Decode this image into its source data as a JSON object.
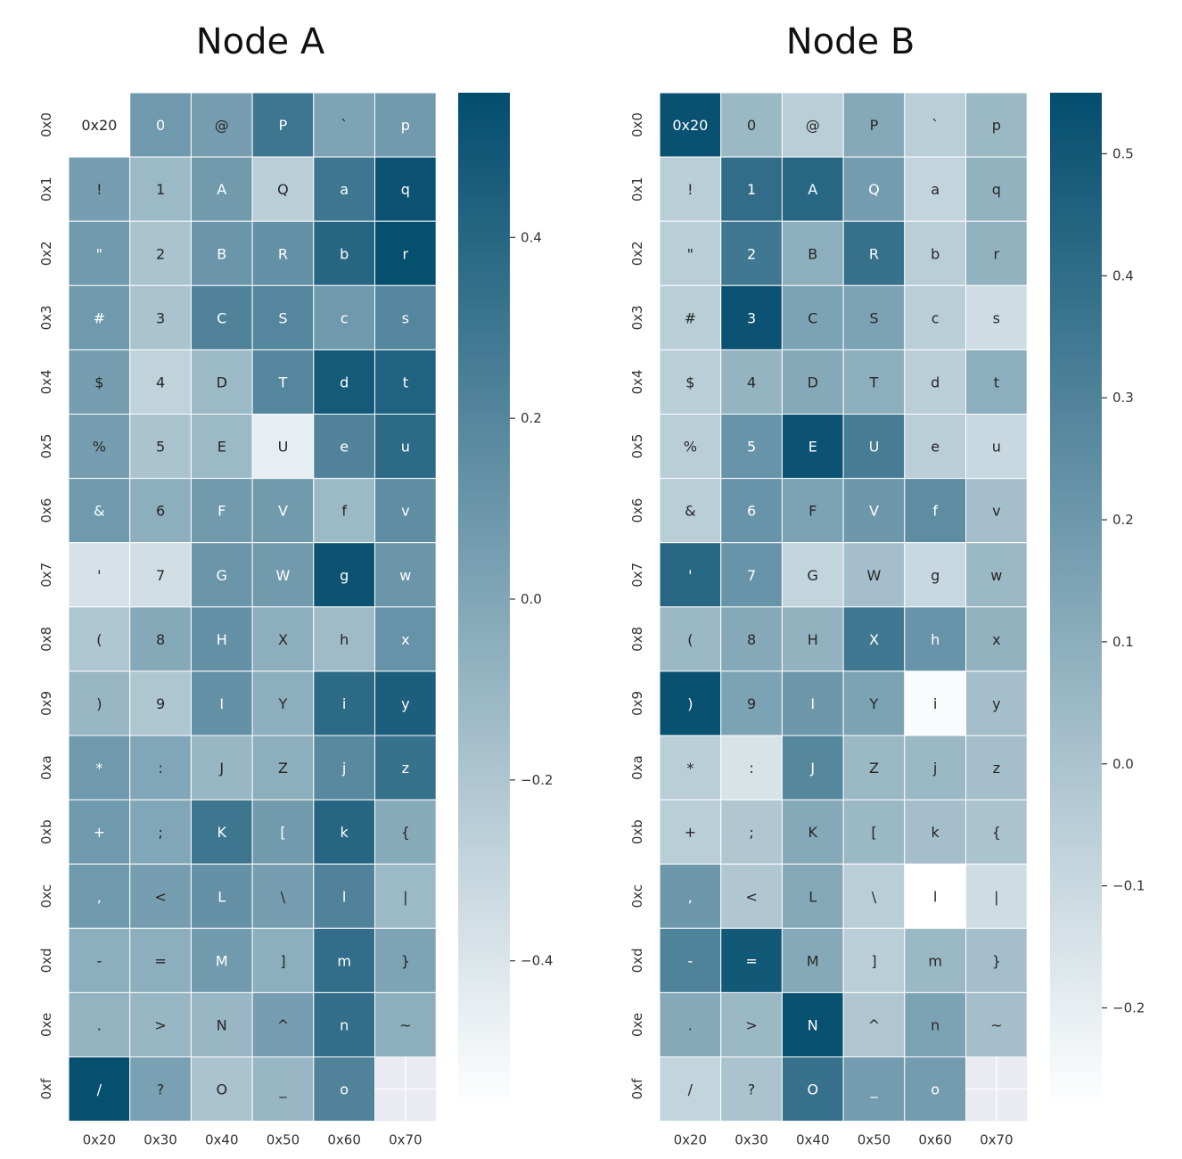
{
  "chart_data": [
    {
      "type": "heatmap",
      "title": "Node A",
      "x_categories": [
        "0x20",
        "0x30",
        "0x40",
        "0x50",
        "0x60",
        "0x70"
      ],
      "y_categories": [
        "0x0",
        "0x1",
        "0x2",
        "0x3",
        "0x4",
        "0x5",
        "0x6",
        "0x7",
        "0x8",
        "0x9",
        "0xa",
        "0xb",
        "0xc",
        "0xd",
        "0xe",
        "0xf"
      ],
      "cell_labels": [
        [
          "0x20",
          "0",
          "@",
          "P",
          "`",
          "p"
        ],
        [
          "!",
          "1",
          "A",
          "Q",
          "a",
          "q"
        ],
        [
          "\"",
          "2",
          "B",
          "R",
          "b",
          "r"
        ],
        [
          "#",
          "3",
          "C",
          "S",
          "c",
          "s"
        ],
        [
          "$",
          "4",
          "D",
          "T",
          "d",
          "t"
        ],
        [
          "%",
          "5",
          "E",
          "U",
          "e",
          "u"
        ],
        [
          "&",
          "6",
          "F",
          "V",
          "f",
          "v"
        ],
        [
          "'",
          "7",
          "G",
          "W",
          "g",
          "w"
        ],
        [
          "(",
          "8",
          "H",
          "X",
          "h",
          "x"
        ],
        [
          ")",
          "9",
          "I",
          "Y",
          "i",
          "y"
        ],
        [
          "*",
          ":",
          "J",
          "Z",
          "j",
          "z"
        ],
        [
          "+",
          ";",
          "K",
          "[",
          "k",
          "{"
        ],
        [
          ",",
          "<",
          "L",
          "\\",
          "l",
          "|"
        ],
        [
          "-",
          "=",
          "M",
          "]",
          "m",
          "}"
        ],
        [
          ".",
          ">",
          "N",
          "^",
          "n",
          "~"
        ],
        [
          "/",
          "?",
          "O",
          "_",
          "o",
          ""
        ]
      ],
      "values": [
        [
          -0.56,
          0.08,
          0.05,
          0.3,
          0.02,
          0.07
        ],
        [
          0.05,
          -0.12,
          0.07,
          -0.25,
          0.3,
          0.52
        ],
        [
          0.08,
          -0.18,
          0.1,
          0.13,
          0.4,
          0.55
        ],
        [
          0.08,
          -0.18,
          0.22,
          0.2,
          0.08,
          0.2
        ],
        [
          0.05,
          -0.28,
          -0.12,
          0.2,
          0.48,
          0.43
        ],
        [
          0.05,
          -0.18,
          -0.12,
          -0.45,
          0.22,
          0.38
        ],
        [
          0.08,
          -0.05,
          0.07,
          0.07,
          -0.12,
          0.15
        ],
        [
          -0.38,
          -0.35,
          0.1,
          0.07,
          0.52,
          0.1
        ],
        [
          -0.2,
          -0.02,
          0.13,
          -0.05,
          -0.13,
          0.12
        ],
        [
          -0.1,
          -0.2,
          0.13,
          -0.05,
          0.38,
          0.45
        ],
        [
          0.08,
          0.0,
          -0.1,
          -0.05,
          0.18,
          0.33
        ],
        [
          0.08,
          0.0,
          0.3,
          0.07,
          0.4,
          -0.03
        ],
        [
          0.08,
          0.05,
          0.13,
          0.05,
          0.22,
          -0.12
        ],
        [
          -0.05,
          -0.05,
          0.07,
          -0.05,
          0.35,
          0.02
        ],
        [
          -0.08,
          -0.1,
          -0.1,
          0.05,
          0.35,
          -0.05
        ],
        [
          0.55,
          0.03,
          -0.18,
          -0.1,
          0.22,
          null
        ]
      ],
      "colorbar": {
        "min": -0.56,
        "max": 0.56,
        "ticks": [
          0.4,
          0.2,
          0.0,
          -0.2,
          -0.4
        ],
        "tick_labels": [
          "0.4",
          "0.2",
          "0.0",
          "−0.2",
          "−0.4"
        ]
      }
    },
    {
      "type": "heatmap",
      "title": "Node B",
      "x_categories": [
        "0x20",
        "0x30",
        "0x40",
        "0x50",
        "0x60",
        "0x70"
      ],
      "y_categories": [
        "0x0",
        "0x1",
        "0x2",
        "0x3",
        "0x4",
        "0x5",
        "0x6",
        "0x7",
        "0x8",
        "0x9",
        "0xa",
        "0xb",
        "0xc",
        "0xd",
        "0xe",
        "0xf"
      ],
      "cell_labels": [
        [
          "0x20",
          "0",
          "@",
          "P",
          "`",
          "p"
        ],
        [
          "!",
          "1",
          "A",
          "Q",
          "a",
          "q"
        ],
        [
          "\"",
          "2",
          "B",
          "R",
          "b",
          "r"
        ],
        [
          "#",
          "3",
          "C",
          "S",
          "c",
          "s"
        ],
        [
          "$",
          "4",
          "D",
          "T",
          "d",
          "t"
        ],
        [
          "%",
          "5",
          "E",
          "U",
          "e",
          "u"
        ],
        [
          "&",
          "6",
          "F",
          "V",
          "f",
          "v"
        ],
        [
          "'",
          "7",
          "G",
          "W",
          "g",
          "w"
        ],
        [
          "(",
          "8",
          "H",
          "X",
          "h",
          "x"
        ],
        [
          ")",
          "9",
          "I",
          "Y",
          "i",
          "y"
        ],
        [
          "*",
          ":",
          "J",
          "Z",
          "j",
          "z"
        ],
        [
          "+",
          ";",
          "K",
          "[",
          "k",
          "{"
        ],
        [
          ",",
          "<",
          "L",
          "\\",
          "l",
          "|"
        ],
        [
          "-",
          "=",
          "M",
          "]",
          "m",
          "}"
        ],
        [
          ".",
          ">",
          "N",
          "^",
          "n",
          "~"
        ],
        [
          "/",
          "?",
          "O",
          "_",
          "o",
          ""
        ]
      ],
      "values": [
        [
          0.53,
          0.05,
          -0.05,
          0.12,
          -0.05,
          0.05
        ],
        [
          -0.05,
          0.4,
          0.43,
          0.18,
          -0.08,
          0.08
        ],
        [
          -0.05,
          0.35,
          0.1,
          0.38,
          -0.05,
          0.08
        ],
        [
          -0.05,
          0.52,
          0.15,
          0.15,
          -0.05,
          -0.12
        ],
        [
          -0.05,
          0.07,
          0.12,
          0.1,
          -0.05,
          0.1
        ],
        [
          -0.05,
          0.22,
          0.52,
          0.33,
          -0.05,
          -0.1
        ],
        [
          -0.05,
          0.22,
          0.15,
          0.2,
          0.25,
          0.02
        ],
        [
          0.43,
          0.22,
          -0.08,
          0.02,
          -0.1,
          0.05
        ],
        [
          0.05,
          0.12,
          0.08,
          0.35,
          0.22,
          0.08
        ],
        [
          0.53,
          0.15,
          0.2,
          0.15,
          -0.26,
          0.02
        ],
        [
          -0.05,
          -0.15,
          0.28,
          0.05,
          0.05,
          0.02
        ],
        [
          -0.05,
          -0.02,
          0.12,
          0.05,
          0.02,
          0.0
        ],
        [
          0.2,
          -0.02,
          0.12,
          -0.05,
          -0.28,
          -0.12
        ],
        [
          0.3,
          0.5,
          0.12,
          -0.05,
          0.05,
          0.02
        ],
        [
          0.12,
          0.05,
          0.53,
          -0.02,
          0.15,
          0.02
        ],
        [
          -0.08,
          0.0,
          0.38,
          0.18,
          0.18,
          null
        ]
      ],
      "colorbar": {
        "min": -0.28,
        "max": 0.55,
        "ticks": [
          0.5,
          0.4,
          0.3,
          0.2,
          0.1,
          0.0,
          -0.1,
          -0.2
        ],
        "tick_labels": [
          "0.5",
          "0.4",
          "0.3",
          "0.2",
          "0.1",
          "0.0",
          "−0.1",
          "−0.2"
        ]
      }
    }
  ],
  "colors": {
    "high": "#034d6e",
    "low": "#ffffff",
    "missing": "#eaeaf2",
    "grid": "#ffffff"
  }
}
